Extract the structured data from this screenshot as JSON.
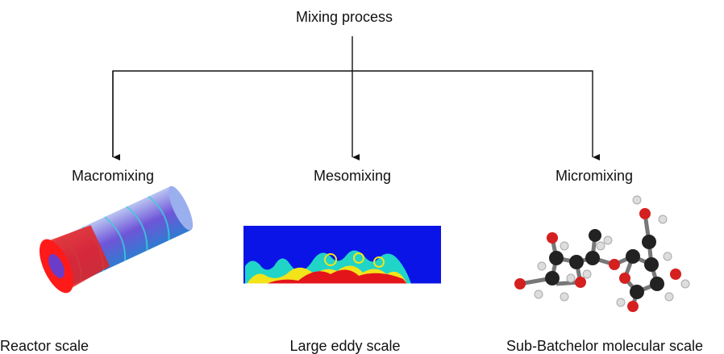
{
  "title": "Mixing process",
  "nodes": [
    {
      "label": "Macromixing",
      "caption": "Reactor scale"
    },
    {
      "label": "Mesomixing",
      "caption": "Large eddy scale"
    },
    {
      "label": "Micromixing",
      "caption": "Sub-Batchelor molecular scale"
    }
  ]
}
